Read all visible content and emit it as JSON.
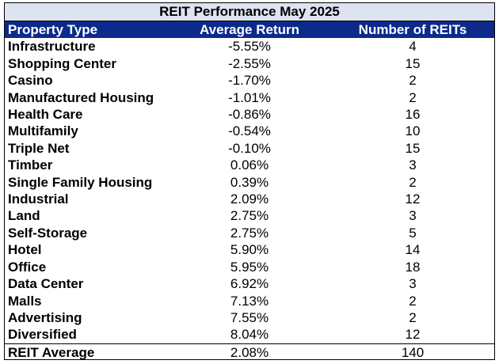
{
  "chart_data": {
    "type": "table",
    "title": "REIT Performance May 2025",
    "columns": [
      "Property Type",
      "Average Return",
      "Number of REITs"
    ],
    "rows": [
      [
        "Infrastructure",
        "-5.55%",
        "4"
      ],
      [
        "Shopping Center",
        "-2.55%",
        "15"
      ],
      [
        "Casino",
        "-1.70%",
        "2"
      ],
      [
        "Manufactured Housing",
        "-1.01%",
        "2"
      ],
      [
        "Health Care",
        "-0.86%",
        "16"
      ],
      [
        "Multifamily",
        "-0.54%",
        "10"
      ],
      [
        "Triple Net",
        "-0.10%",
        "15"
      ],
      [
        "Timber",
        "0.06%",
        "3"
      ],
      [
        "Single Family Housing",
        "0.39%",
        "2"
      ],
      [
        "Industrial",
        "2.09%",
        "12"
      ],
      [
        "Land",
        "2.75%",
        "3"
      ],
      [
        "Self-Storage",
        "2.75%",
        "5"
      ],
      [
        "Hotel",
        "5.90%",
        "14"
      ],
      [
        "Office",
        "5.95%",
        "18"
      ],
      [
        "Data Center",
        "6.92%",
        "3"
      ],
      [
        "Malls",
        "7.13%",
        "2"
      ],
      [
        "Advertising",
        "7.55%",
        "2"
      ],
      [
        "Diversified",
        "8.04%",
        "12"
      ]
    ],
    "summary_row": [
      "REIT Average",
      "2.08%",
      "140"
    ]
  },
  "colors": {
    "title_background": "#dde3f1",
    "header_background": "#0c2a8c",
    "header_text": "#ffffff"
  }
}
